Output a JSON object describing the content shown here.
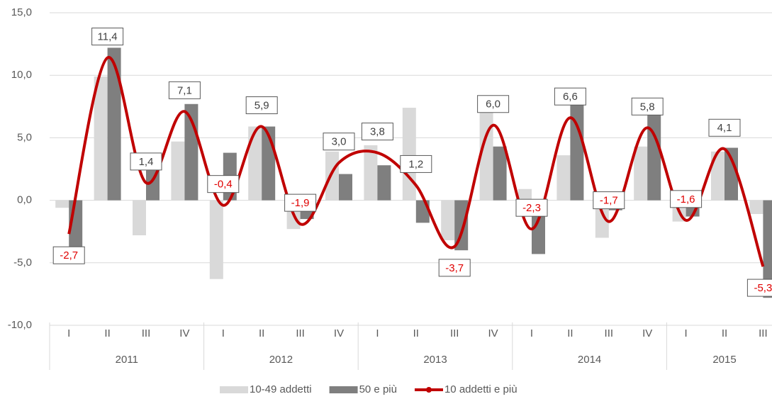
{
  "chart_data": {
    "type": "bar-line",
    "groups": [
      {
        "name": "2011",
        "categories": [
          "I",
          "II",
          "III",
          "IV"
        ]
      },
      {
        "name": "2012",
        "categories": [
          "I",
          "II",
          "III",
          "IV"
        ]
      },
      {
        "name": "2013",
        "categories": [
          "I",
          "II",
          "III",
          "IV"
        ]
      },
      {
        "name": "2014",
        "categories": [
          "I",
          "II",
          "III",
          "IV"
        ]
      },
      {
        "name": "2015",
        "categories": [
          "I",
          "II",
          "III"
        ]
      }
    ],
    "series": [
      {
        "name": "10-49 addetti",
        "type": "bar",
        "color": "#d9d9d9",
        "values": [
          -0.6,
          9.9,
          -2.8,
          4.7,
          -6.3,
          5.9,
          -2.3,
          3.9,
          4.4,
          7.4,
          -3.2,
          8.4,
          0.9,
          3.6,
          -3.0,
          4.3,
          -1.7,
          3.9,
          -1.1
        ]
      },
      {
        "name": "50 e più",
        "type": "bar",
        "color": "#7f7f7f",
        "values": [
          -4.6,
          12.2,
          2.4,
          7.7,
          3.8,
          5.9,
          -1.5,
          2.1,
          2.8,
          -1.8,
          -4.0,
          4.3,
          -4.3,
          8.5,
          -0.8,
          7.2,
          -1.3,
          4.2,
          -7.8
        ]
      },
      {
        "name": "10 addetti e più",
        "type": "line",
        "color": "#c00000",
        "values": [
          -2.7,
          11.4,
          1.4,
          7.1,
          -0.4,
          5.9,
          -1.9,
          3.0,
          3.8,
          1.2,
          -3.7,
          6.0,
          -2.3,
          6.6,
          -1.7,
          5.8,
          -1.6,
          4.1,
          -5.3
        ],
        "value_labels": [
          "-2,7",
          "11,4",
          "1,4",
          "7,1",
          "-0,4",
          "5,9",
          "-1,9",
          "3,0",
          "3,8",
          "1,2",
          "-3,7",
          "6,0",
          "-2,3",
          "6,6",
          "-1,7",
          "5,8",
          "-1,6",
          "4,1",
          "-5,3"
        ]
      }
    ],
    "label_colors": {
      "positive": "#404040",
      "negative": "#e00000"
    },
    "ylim": [
      -10,
      15
    ],
    "yticks": [
      {
        "value": -10,
        "label": "-10,0"
      },
      {
        "value": -5,
        "label": "-5,0"
      },
      {
        "value": 0,
        "label": "0,0"
      },
      {
        "value": 5,
        "label": "5,0"
      },
      {
        "value": 10,
        "label": "10,0"
      },
      {
        "value": 15,
        "label": "15,0"
      }
    ],
    "grid": true
  }
}
